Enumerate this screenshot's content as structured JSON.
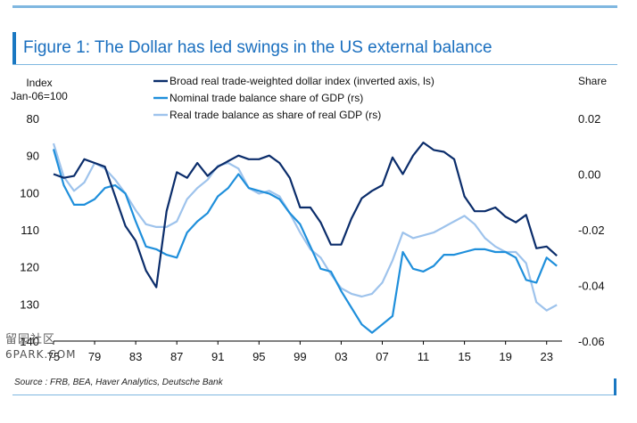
{
  "figure": {
    "title": "Figure 1: The Dollar has led swings in the US external balance",
    "source": "Source : FRB, BEA, Haver Analytics, Deutsche Bank",
    "watermark_line1": "留园社区",
    "watermark_line2": "6PARK.COM"
  },
  "chart_data": {
    "type": "line",
    "left_axis_title_1": "Index",
    "left_axis_title_2": "Jan-06=100",
    "right_axis_title": "Share",
    "left_axis": {
      "inverted": true,
      "ylim": [
        80,
        140
      ],
      "ticks": [
        80,
        90,
        100,
        110,
        120,
        130,
        140
      ]
    },
    "right_axis": {
      "ylim": [
        0.02,
        -0.06
      ],
      "ticks": [
        0.02,
        0.0,
        -0.02,
        -0.04,
        -0.06
      ],
      "tick_labels": [
        "0.02",
        "0.00",
        "-0.02",
        "-0.04",
        "-0.06"
      ]
    },
    "x_axis": {
      "xlim": [
        1975,
        2024.5
      ],
      "ticks": [
        1975,
        1979,
        1983,
        1987,
        1991,
        1995,
        1999,
        2003,
        2007,
        2011,
        2015,
        2019,
        2023
      ],
      "tick_labels": [
        "75",
        "79",
        "83",
        "87",
        "91",
        "95",
        "99",
        "03",
        "07",
        "11",
        "15",
        "19",
        "23"
      ]
    },
    "legend_position": "top",
    "series": [
      {
        "name": "Broad real trade-weighted dollar index (inverted axis, ls)",
        "axis": "left",
        "color": "#0b2d6b",
        "points": [
          [
            1975,
            95
          ],
          [
            1976,
            96
          ],
          [
            1977,
            95.5
          ],
          [
            1978,
            91
          ],
          [
            1979,
            92
          ],
          [
            1980,
            93
          ],
          [
            1981,
            101
          ],
          [
            1982,
            109
          ],
          [
            1983,
            113
          ],
          [
            1984,
            121
          ],
          [
            1985,
            125.5
          ],
          [
            1986,
            105
          ],
          [
            1987,
            94.5
          ],
          [
            1988,
            96
          ],
          [
            1989,
            92
          ],
          [
            1990,
            95.5
          ],
          [
            1991,
            93
          ],
          [
            1992,
            91.5
          ],
          [
            1993,
            90
          ],
          [
            1994,
            91
          ],
          [
            1995,
            91
          ],
          [
            1996,
            90
          ],
          [
            1997,
            92
          ],
          [
            1998,
            96
          ],
          [
            1999,
            104
          ],
          [
            2000,
            104
          ],
          [
            2001,
            108
          ],
          [
            2002,
            114
          ],
          [
            2003,
            114
          ],
          [
            2004,
            107
          ],
          [
            2005,
            101.5
          ],
          [
            2006,
            99.5
          ],
          [
            2007,
            98
          ],
          [
            2008,
            90.5
          ],
          [
            2009,
            95
          ],
          [
            2010,
            90
          ],
          [
            2011,
            86.5
          ],
          [
            2012,
            88.5
          ],
          [
            2013,
            89
          ],
          [
            2014,
            91
          ],
          [
            2015,
            101
          ],
          [
            2016,
            105
          ],
          [
            2017,
            105
          ],
          [
            2018,
            104
          ],
          [
            2019,
            106.5
          ],
          [
            2020,
            108
          ],
          [
            2021,
            106
          ],
          [
            2022,
            115
          ],
          [
            2023,
            114.5
          ],
          [
            2024,
            117
          ]
        ]
      },
      {
        "name": "Nominal trade balance share of GDP (rs)",
        "axis": "right",
        "color": "#1f8fdb",
        "points": [
          [
            1975,
            0.009
          ],
          [
            1976,
            -0.004
          ],
          [
            1977,
            -0.011
          ],
          [
            1978,
            -0.011
          ],
          [
            1979,
            -0.009
          ],
          [
            1980,
            -0.005
          ],
          [
            1981,
            -0.004
          ],
          [
            1982,
            -0.007
          ],
          [
            1983,
            -0.017
          ],
          [
            1984,
            -0.026
          ],
          [
            1985,
            -0.027
          ],
          [
            1986,
            -0.029
          ],
          [
            1987,
            -0.03
          ],
          [
            1988,
            -0.021
          ],
          [
            1989,
            -0.017
          ],
          [
            1990,
            -0.014
          ],
          [
            1991,
            -0.008
          ],
          [
            1992,
            -0.005
          ],
          [
            1993,
            0.0
          ],
          [
            1994,
            -0.005
          ],
          [
            1995,
            -0.006
          ],
          [
            1996,
            -0.007
          ],
          [
            1997,
            -0.009
          ],
          [
            1998,
            -0.014
          ],
          [
            1999,
            -0.018
          ],
          [
            2000,
            -0.026
          ],
          [
            2001,
            -0.034
          ],
          [
            2002,
            -0.035
          ],
          [
            2003,
            -0.042
          ],
          [
            2004,
            -0.048
          ],
          [
            2005,
            -0.054
          ],
          [
            2006,
            -0.057
          ],
          [
            2007,
            -0.054
          ],
          [
            2008,
            -0.051
          ],
          [
            2009,
            -0.028
          ],
          [
            2010,
            -0.034
          ],
          [
            2011,
            -0.035
          ],
          [
            2012,
            -0.033
          ],
          [
            2013,
            -0.029
          ],
          [
            2014,
            -0.029
          ],
          [
            2015,
            -0.028
          ],
          [
            2016,
            -0.027
          ],
          [
            2017,
            -0.027
          ],
          [
            2018,
            -0.028
          ],
          [
            2019,
            -0.028
          ],
          [
            2020,
            -0.03
          ],
          [
            2021,
            -0.038
          ],
          [
            2022,
            -0.039
          ],
          [
            2023,
            -0.03
          ],
          [
            2024,
            -0.033
          ]
        ]
      },
      {
        "name": "Real trade balance as share of real GDP (rs)",
        "axis": "right",
        "color": "#9ec3ec",
        "points": [
          [
            1975,
            0.011
          ],
          [
            1976,
            -0.001
          ],
          [
            1977,
            -0.006
          ],
          [
            1978,
            -0.003
          ],
          [
            1979,
            0.004
          ],
          [
            1980,
            0.002
          ],
          [
            1981,
            -0.002
          ],
          [
            1982,
            -0.007
          ],
          [
            1983,
            -0.013
          ],
          [
            1984,
            -0.018
          ],
          [
            1985,
            -0.019
          ],
          [
            1986,
            -0.019
          ],
          [
            1987,
            -0.017
          ],
          [
            1988,
            -0.009
          ],
          [
            1989,
            -0.005
          ],
          [
            1990,
            -0.002
          ],
          [
            1991,
            0.003
          ],
          [
            1992,
            0.004
          ],
          [
            1993,
            0.002
          ],
          [
            1994,
            -0.005
          ],
          [
            1995,
            -0.007
          ],
          [
            1996,
            -0.006
          ],
          [
            1997,
            -0.008
          ],
          [
            1998,
            -0.014
          ],
          [
            1999,
            -0.021
          ],
          [
            2000,
            -0.027
          ],
          [
            2001,
            -0.03
          ],
          [
            2002,
            -0.036
          ],
          [
            2003,
            -0.041
          ],
          [
            2004,
            -0.043
          ],
          [
            2005,
            -0.044
          ],
          [
            2006,
            -0.043
          ],
          [
            2007,
            -0.039
          ],
          [
            2008,
            -0.031
          ],
          [
            2009,
            -0.021
          ],
          [
            2010,
            -0.023
          ],
          [
            2011,
            -0.022
          ],
          [
            2012,
            -0.021
          ],
          [
            2013,
            -0.019
          ],
          [
            2014,
            -0.017
          ],
          [
            2015,
            -0.015
          ],
          [
            2016,
            -0.018
          ],
          [
            2017,
            -0.023
          ],
          [
            2018,
            -0.026
          ],
          [
            2019,
            -0.028
          ],
          [
            2020,
            -0.028
          ],
          [
            2021,
            -0.032
          ],
          [
            2022,
            -0.046
          ],
          [
            2023,
            -0.049
          ],
          [
            2024,
            -0.047
          ]
        ]
      }
    ]
  }
}
